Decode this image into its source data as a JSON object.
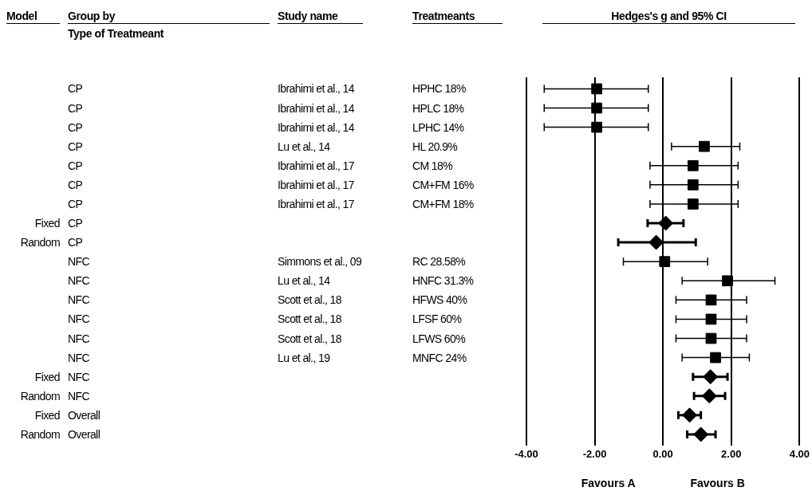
{
  "chart_data": [
    {
      "type": "other",
      "title": "Model",
      "categories": [
        null,
        null,
        null,
        null,
        null,
        null,
        null,
        "Fixed",
        "Random",
        null,
        null,
        null,
        null,
        null,
        null,
        "Fixed",
        "Random",
        "Fixed",
        "Random"
      ]
    },
    {
      "type": "other",
      "title": "Group by",
      "subtitle": "Type of Treatmeant",
      "categories": [
        "CP",
        "CP",
        "CP",
        "CP",
        "CP",
        "CP",
        "CP",
        "CP",
        "CP",
        "NFC",
        "NFC",
        "NFC",
        "NFC",
        "NFC",
        "NFC",
        "NFC",
        "NFC",
        "Overall",
        "Overall"
      ]
    },
    {
      "type": "other",
      "title": "Study name",
      "categories": [
        "Ibrahimi et al., 14",
        "Ibrahimi et al., 14",
        "Ibrahimi et al., 14",
        "Lu et al., 14",
        "Ibrahimi et al., 17",
        "Ibrahimi et al., 17",
        "Ibrahimi et al., 17",
        null,
        null,
        "Simmons et al., 09",
        "Lu et al., 14",
        "Scott et al., 18",
        "Scott et al., 18",
        "Scott et al., 18",
        "Lu et al., 19",
        null,
        null,
        null,
        null
      ]
    },
    {
      "type": "other",
      "title": "Treatmeants",
      "categories": [
        "HPHC 18%",
        "HPLC 18%",
        "LPHC 14%",
        "HL 20.9%",
        "CM 18%",
        "CM+FM 16%",
        "CM+FM 18%",
        null,
        null,
        "RC 28.58%",
        "HNFC 31.3%",
        "HFWS 40%",
        "LFSF 60%",
        "LFWS 60%",
        "MNFC 24%",
        null,
        null,
        null,
        null
      ]
    },
    {
      "type": "scatter",
      "title": "Hedges's g and 95% CI",
      "orientation": "horizontal",
      "categories": [
        null,
        null,
        null,
        null,
        null,
        null,
        null,
        null,
        null,
        null,
        null,
        null,
        null,
        null,
        null,
        null,
        null,
        null,
        null
      ],
      "series": [
        {
          "marker": "square",
          "color": "#000000",
          "values": [
            -1.94,
            -1.94,
            -1.94,
            1.21,
            0.88,
            0.88,
            0.88,
            null,
            null,
            0.05,
            1.89,
            1.41,
            1.41,
            1.41,
            1.54,
            null,
            null,
            null,
            null
          ],
          "errors": [
            [
              -3.48,
              -0.43
            ],
            [
              -3.48,
              -0.43
            ],
            [
              -3.48,
              -0.43
            ],
            [
              0.25,
              2.25
            ],
            [
              -0.38,
              2.2
            ],
            [
              -0.38,
              2.2
            ],
            [
              -0.38,
              2.2
            ],
            null,
            null,
            [
              -1.16,
              1.31
            ],
            [
              0.56,
              3.28
            ],
            [
              0.38,
              2.45
            ],
            [
              0.38,
              2.45
            ],
            [
              0.38,
              2.45
            ],
            [
              0.56,
              2.53
            ],
            null,
            null,
            null,
            null
          ]
        },
        {
          "marker": "diamond",
          "color": "#000000",
          "values": [
            null,
            null,
            null,
            null,
            null,
            null,
            null,
            0.08,
            -0.2,
            null,
            null,
            null,
            null,
            null,
            null,
            1.39,
            1.36,
            0.78,
            1.11
          ],
          "errors": [
            null,
            null,
            null,
            null,
            null,
            null,
            null,
            [
              -0.45,
              0.6
            ],
            [
              -1.31,
              0.96
            ],
            null,
            null,
            null,
            null,
            null,
            null,
            [
              0.88,
              1.89
            ],
            [
              0.91,
              1.82
            ],
            [
              0.45,
              1.11
            ],
            [
              0.71,
              1.54
            ]
          ]
        }
      ],
      "xlim": [
        -4,
        4
      ],
      "xticks": [
        {
          "value": -4,
          "label": "-4.00"
        },
        {
          "value": -2,
          "label": "-2.00"
        },
        {
          "value": 0,
          "label": "0.00"
        },
        {
          "value": 2,
          "label": "2.00"
        },
        {
          "value": 4,
          "label": "4.00"
        }
      ],
      "grid": "x",
      "annotations": [
        "Favours A",
        "Favours B"
      ]
    }
  ]
}
